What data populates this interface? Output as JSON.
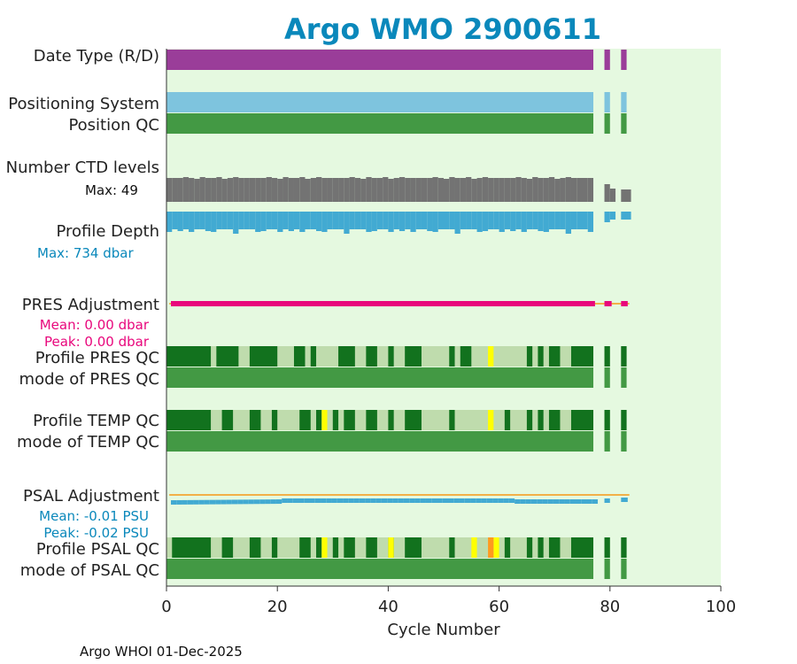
{
  "chart_data": {
    "type": "heatmap",
    "title": "Argo WMO 2900611",
    "xlabel": "Cycle Number",
    "xlim": [
      0,
      100
    ],
    "xticks": [
      0,
      20,
      40,
      60,
      80,
      100
    ],
    "footer": "Argo WHOI 01-Dec-2025",
    "rows": {
      "date_type": "Date Type (R/D)",
      "positioning": "Positioning System",
      "position_qc": "Position QC",
      "n_levels": "Number CTD levels",
      "n_levels_max": "Max: 49",
      "profile_depth": "Profile Depth",
      "profile_depth_max": "Max:  734 dbar",
      "pres_adj": "PRES Adjustment",
      "pres_mean": "Mean: 0.00 dbar",
      "pres_peak": "Peak: 0.00 dbar",
      "profile_pres_qc": "Profile PRES QC",
      "mode_pres_qc": "mode of PRES QC",
      "profile_temp_qc": "Profile TEMP QC",
      "mode_temp_qc": "mode of TEMP QC",
      "psal_adj": "PSAL Adjustment",
      "psal_mean": "Mean: -0.01 PSU",
      "psal_peak": "Peak: -0.02 PSU",
      "profile_psal_qc": "Profile PSAL QC",
      "mode_psal_qc": "mode of PSAL QC"
    },
    "cycle_segments": [
      [
        0,
        77
      ],
      [
        79,
        80
      ],
      [
        82,
        83
      ]
    ],
    "profile_pres_qc_dark": [
      [
        0,
        8
      ],
      [
        9,
        13
      ],
      [
        15,
        20
      ],
      [
        23,
        25
      ],
      [
        26,
        27
      ],
      [
        31,
        34
      ],
      [
        36,
        38
      ],
      [
        40,
        41
      ],
      [
        43,
        46
      ],
      [
        51,
        52
      ],
      [
        53,
        55
      ],
      [
        65,
        66
      ],
      [
        67,
        68
      ],
      [
        69,
        71
      ],
      [
        73,
        77
      ],
      [
        79,
        80
      ],
      [
        82,
        83
      ]
    ],
    "profile_pres_qc_yellow": [
      [
        58,
        59
      ]
    ],
    "profile_temp_qc_dark": [
      [
        0,
        8
      ],
      [
        10,
        12
      ],
      [
        15,
        17
      ],
      [
        19,
        20
      ],
      [
        24,
        26
      ],
      [
        27,
        28
      ],
      [
        30,
        31
      ],
      [
        32,
        34
      ],
      [
        36,
        38
      ],
      [
        40,
        41
      ],
      [
        43,
        46
      ],
      [
        51,
        52
      ],
      [
        61,
        62
      ],
      [
        65,
        66
      ],
      [
        67,
        68
      ],
      [
        69,
        71
      ],
      [
        73,
        77
      ],
      [
        79,
        80
      ],
      [
        82,
        83
      ]
    ],
    "profile_temp_qc_yellow": [
      [
        28,
        29
      ],
      [
        58,
        59
      ]
    ],
    "profile_psal_qc_dark": [
      [
        1,
        8
      ],
      [
        10,
        12
      ],
      [
        15,
        17
      ],
      [
        19,
        20
      ],
      [
        24,
        26
      ],
      [
        27,
        28
      ],
      [
        30,
        31
      ],
      [
        32,
        34
      ],
      [
        36,
        38
      ],
      [
        40,
        41
      ],
      [
        43,
        46
      ],
      [
        51,
        52
      ],
      [
        61,
        62
      ],
      [
        65,
        66
      ],
      [
        67,
        68
      ],
      [
        69,
        71
      ],
      [
        73,
        77
      ],
      [
        79,
        80
      ],
      [
        82,
        83
      ]
    ],
    "profile_psal_qc_yellow": [
      [
        28,
        29
      ],
      [
        40,
        41
      ],
      [
        55,
        56
      ],
      [
        59,
        60
      ]
    ],
    "profile_psal_qc_orange": [
      [
        58,
        59
      ]
    ],
    "colors": {
      "plot_bg": "#e5f9e0",
      "date_type": "#9a3d99",
      "positioning": "#7ec4de",
      "qc_good": "#439944",
      "qc_dark": "#12721e",
      "qc_light": "#bfdcad",
      "yellow": "#ffff00",
      "orange": "#ff9a1f",
      "levels": "#737373",
      "depth": "#42aad2",
      "pres_adj": "#e8077c",
      "adj_zero_line": "#f2b048",
      "psal_adj": "#42aad2",
      "title": "#0a88bb",
      "pres_text": "#e8077c",
      "psal_text": "#0a88bb"
    }
  }
}
